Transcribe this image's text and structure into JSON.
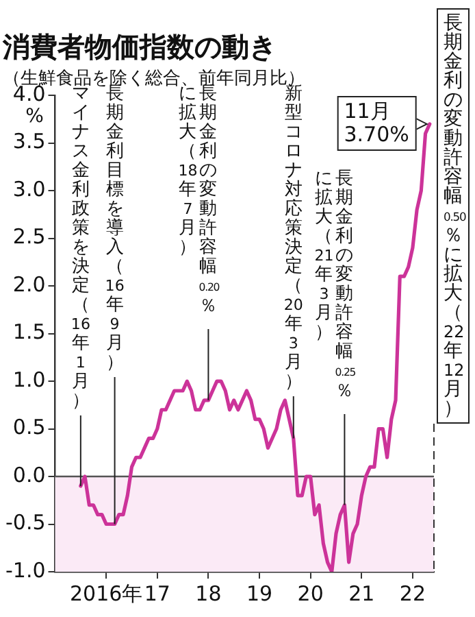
{
  "chart_data": {
    "type": "line",
    "title": "消費者物価指数の動き",
    "subtitle": "（生鮮食品を除く総合、前年同月比）",
    "ylabel": "%",
    "x": [
      "2016-01",
      "2016-02",
      "2016-03",
      "2016-04",
      "2016-05",
      "2016-06",
      "2016-07",
      "2016-08",
      "2016-09",
      "2016-10",
      "2016-11",
      "2016-12",
      "2017-01",
      "2017-02",
      "2017-03",
      "2017-04",
      "2017-05",
      "2017-06",
      "2017-07",
      "2017-08",
      "2017-09",
      "2017-10",
      "2017-11",
      "2017-12",
      "2018-01",
      "2018-02",
      "2018-03",
      "2018-04",
      "2018-05",
      "2018-06",
      "2018-07",
      "2018-08",
      "2018-09",
      "2018-10",
      "2018-11",
      "2018-12",
      "2019-01",
      "2019-02",
      "2019-03",
      "2019-04",
      "2019-05",
      "2019-06",
      "2019-07",
      "2019-08",
      "2019-09",
      "2019-10",
      "2019-11",
      "2019-12",
      "2020-01",
      "2020-02",
      "2020-03",
      "2020-04",
      "2020-05",
      "2020-06",
      "2020-07",
      "2020-08",
      "2020-09",
      "2020-10",
      "2020-11",
      "2020-12",
      "2021-01",
      "2021-02",
      "2021-03",
      "2021-04",
      "2021-05",
      "2021-06",
      "2021-07",
      "2021-08",
      "2021-09",
      "2021-10",
      "2021-11",
      "2021-12",
      "2022-01",
      "2022-02",
      "2022-03",
      "2022-04",
      "2022-05",
      "2022-06",
      "2022-07",
      "2022-08",
      "2022-09",
      "2022-10",
      "2022-11"
    ],
    "series": [
      {
        "color": "#cc3399",
        "values": [
          -0.1,
          0.0,
          -0.3,
          -0.3,
          -0.4,
          -0.4,
          -0.5,
          -0.5,
          -0.5,
          -0.4,
          -0.4,
          -0.2,
          0.1,
          0.2,
          0.2,
          0.3,
          0.4,
          0.4,
          0.5,
          0.7,
          0.7,
          0.8,
          0.9,
          0.9,
          0.9,
          1.0,
          0.9,
          0.7,
          0.7,
          0.8,
          0.8,
          0.9,
          1.0,
          1.0,
          0.9,
          0.7,
          0.8,
          0.7,
          0.8,
          0.9,
          0.8,
          0.6,
          0.6,
          0.5,
          0.3,
          0.4,
          0.5,
          0.7,
          0.8,
          0.6,
          0.4,
          -0.2,
          -0.2,
          0.0,
          0.0,
          -0.4,
          -0.3,
          -0.7,
          -0.9,
          -1.0,
          -0.6,
          -0.4,
          -0.3,
          -0.9,
          -0.6,
          -0.5,
          -0.2,
          0.0,
          0.1,
          0.1,
          0.5,
          0.5,
          0.2,
          0.6,
          0.8,
          2.1,
          2.1,
          2.2,
          2.4,
          2.8,
          3.0,
          3.6,
          3.7
        ]
      }
    ],
    "xlim": [
      "2015-07",
      "2022-12"
    ],
    "xticks": [
      {
        "value": "2016-07",
        "label": "2016年"
      },
      {
        "value": "2017-07",
        "label": "17"
      },
      {
        "value": "2018-07",
        "label": "18"
      },
      {
        "value": "2019-07",
        "label": "19"
      },
      {
        "value": "2020-07",
        "label": "20"
      },
      {
        "value": "2021-07",
        "label": "21"
      },
      {
        "value": "2022-07",
        "label": "22"
      }
    ],
    "ylim": [
      -1,
      4
    ],
    "yticks": [
      {
        "value": 4,
        "label": "4.0"
      },
      {
        "value": 3.5,
        "label": "3.5"
      },
      {
        "value": 3,
        "label": "3.0"
      },
      {
        "value": 2.5,
        "label": "2.5"
      },
      {
        "value": 2,
        "label": "2.0"
      },
      {
        "value": 1.5,
        "label": "1.5"
      },
      {
        "value": 1,
        "label": "1.0"
      },
      {
        "value": 0.5,
        "label": "0.5"
      },
      {
        "value": 0,
        "label": "0.0"
      },
      {
        "value": -0.5,
        "label": "-0.5"
      },
      {
        "value": -1,
        "label": "-1.0"
      }
    ],
    "bands": [
      {
        "axis": "y",
        "from": -1,
        "to": 0,
        "color": "#fbeaf6"
      }
    ],
    "ref_lines": [
      {
        "axis": "y",
        "value": 0,
        "color": "#555555"
      },
      {
        "axis": "x",
        "value": "2016-01",
        "label": "マイナス金利政策を決定（16年1月）",
        "color": "#222222"
      },
      {
        "axis": "x",
        "value": "2016-09",
        "label": "長期金利目標を導入（16年9月）",
        "color": "#222222"
      },
      {
        "axis": "x",
        "value": "2018-07",
        "label": "長期金利の変動許容幅0.20％に拡大（18年7月）",
        "color": "#222222"
      },
      {
        "axis": "x",
        "value": "2020-03",
        "label": "新型コロナ対応策決定（20年3月）",
        "color": "#222222"
      },
      {
        "axis": "x",
        "value": "2021-03",
        "label": "長期金利の変動許容幅0.25％に拡大（21年3月）",
        "color": "#222222"
      },
      {
        "axis": "x",
        "value": "2022-12",
        "label": "長期金利の変動許容幅0.50％に拡大（22年12月）",
        "line_style": "dashed",
        "color": "#333333"
      }
    ],
    "annotations": [
      {
        "text": "11月\n3.70%",
        "x": "2022-11",
        "y": 3.7
      }
    ],
    "marker": "none",
    "line_style": "solid"
  }
}
